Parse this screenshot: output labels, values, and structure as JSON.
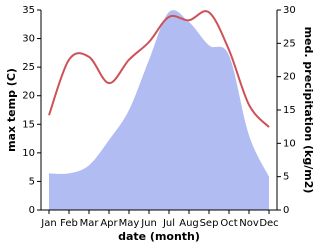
{
  "chart_data": {
    "type": "line-area",
    "x_label": "date (month)",
    "y_label": "max temp (C)",
    "y2_label": "med. precipitation (kg/m2)",
    "categories": [
      "Jan",
      "Feb",
      "Mar",
      "Apr",
      "May",
      "Jun",
      "Jul",
      "Aug",
      "Sep",
      "Oct",
      "Nov",
      "Dec"
    ],
    "series": [
      {
        "name": "max temp",
        "type": "line",
        "color": "#cd5257",
        "values": [
          16.6,
          26.3,
          26.8,
          22.2,
          26.3,
          29.4,
          33.8,
          33.2,
          34.6,
          28,
          18.4,
          14.5
        ]
      },
      {
        "name": "precipitation",
        "type": "area",
        "axis": "y2",
        "color": "#b0bcf2",
        "values": [
          5.5,
          5.5,
          6.7,
          10.5,
          15,
          22.5,
          29.7,
          28.2,
          24.7,
          23.2,
          11.2,
          5
        ]
      }
    ],
    "ylim": [
      0,
      35
    ],
    "yticks": [
      0,
      5,
      10,
      15,
      20,
      25,
      30,
      35
    ],
    "y2lim": [
      0,
      30
    ],
    "y2ticks": [
      0,
      5,
      10,
      15,
      20,
      25,
      30
    ]
  }
}
